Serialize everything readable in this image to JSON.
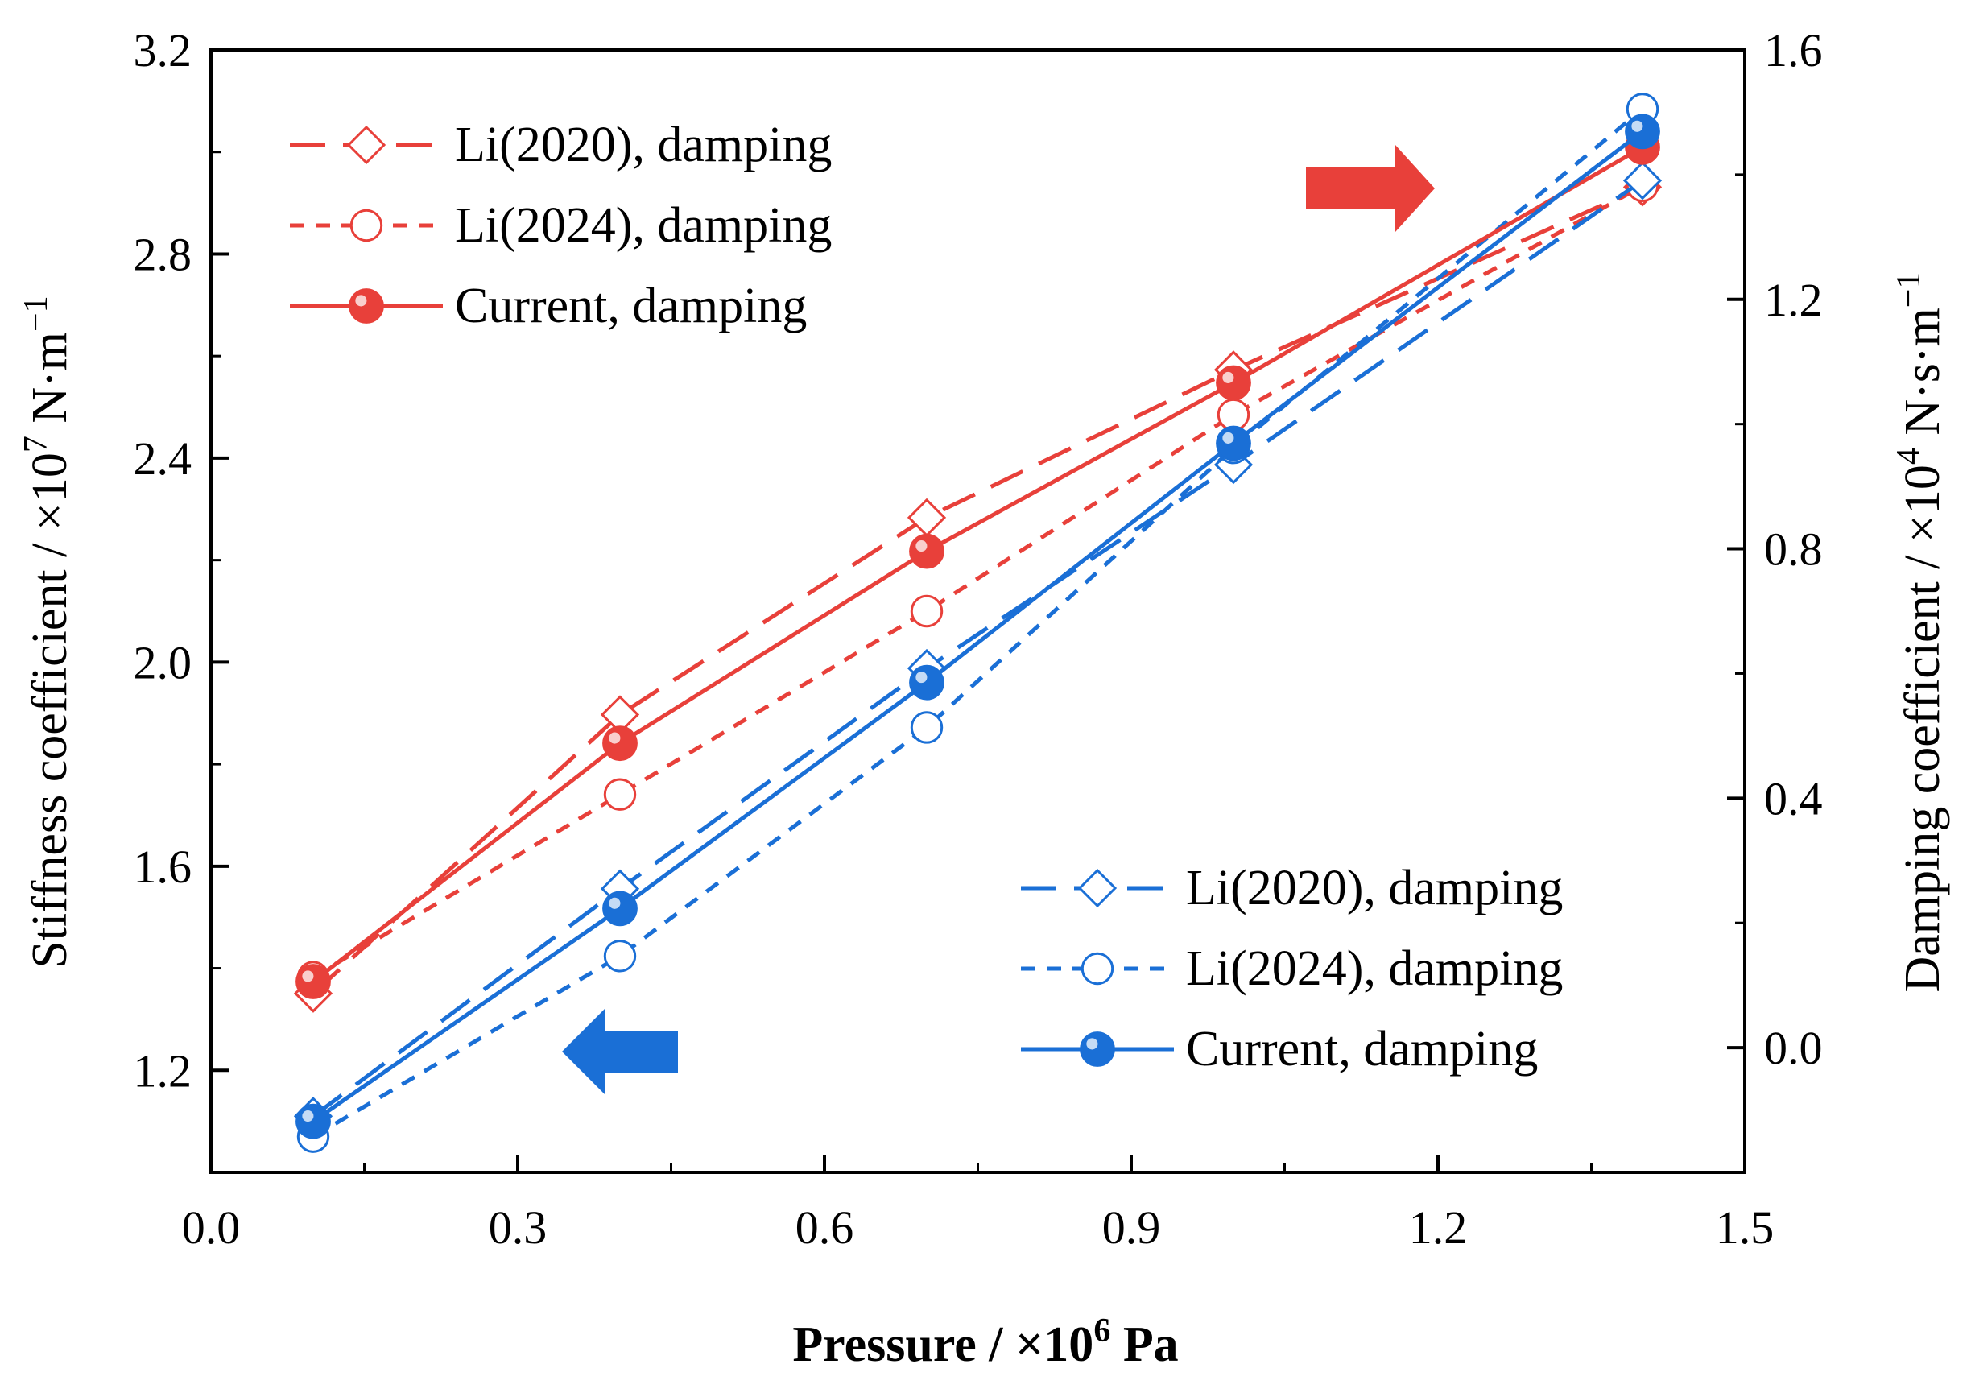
{
  "chart_data": {
    "type": "line",
    "x_axis": {
      "label": "Pressure / ×10",
      "label_exp": "6",
      "label_unit": " Pa",
      "lim": [
        0.0,
        1.5
      ],
      "ticks": [
        0.0,
        0.3,
        0.6,
        0.9,
        1.2,
        1.5
      ],
      "tick_labels": [
        "0.0",
        "0.3",
        "0.6",
        "0.9",
        "1.2",
        "1.5"
      ]
    },
    "y_left": {
      "label": "Stiffness coefficient / ×10",
      "label_exp": "7",
      "label_unit": " N·m",
      "label_unit_exp": "−1",
      "lim": [
        1.0,
        3.2
      ],
      "ticks": [
        1.2,
        1.6,
        2.0,
        2.4,
        2.8,
        3.2
      ],
      "tick_labels": [
        "1.2",
        "1.6",
        "2.0",
        "2.4",
        "2.8",
        "3.2"
      ]
    },
    "y_right": {
      "label": "Damping coefficient / ×10",
      "label_exp": "4",
      "label_unit": " N·s·m",
      "label_unit_exp": "−1",
      "lim": [
        -0.2,
        1.6
      ],
      "ticks": [
        0.0,
        0.4,
        0.8,
        1.2,
        1.6
      ],
      "tick_labels": [
        "0.0",
        "0.4",
        "0.8",
        "1.2",
        "1.6"
      ]
    },
    "x": [
      0.1,
      0.4,
      0.7,
      1.0,
      1.4
    ],
    "series": [
      {
        "name": "Li(2020), damping",
        "axis": "right",
        "color": "#e8403a",
        "dash": "dashed",
        "marker": "diamond",
        "values": [
          0.087,
          0.534,
          0.85,
          1.087,
          1.38
        ]
      },
      {
        "name": "Li(2024), damping",
        "axis": "right",
        "color": "#e8403a",
        "dash": "dotted",
        "marker": "circle",
        "values": [
          0.113,
          0.406,
          0.7,
          1.015,
          1.382
        ]
      },
      {
        "name": "Current,   damping",
        "axis": "right",
        "color": "#e8403a",
        "dash": "solid",
        "marker": "ball",
        "values": [
          0.106,
          0.488,
          0.796,
          1.066,
          1.444
        ]
      },
      {
        "name": "Li(2020), damping",
        "axis": "left",
        "color": "#1a6fd6",
        "dash": "dashed",
        "marker": "diamond",
        "values": [
          1.11,
          1.556,
          1.988,
          2.387,
          2.944
        ]
      },
      {
        "name": "Li(2024), damping",
        "axis": "left",
        "color": "#1a6fd6",
        "dash": "dotted",
        "marker": "circle",
        "values": [
          1.07,
          1.424,
          1.872,
          2.42,
          3.084
        ]
      },
      {
        "name": "Current,   damping",
        "axis": "left",
        "color": "#1a6fd6",
        "dash": "solid",
        "marker": "ball",
        "values": [
          1.1,
          1.517,
          1.96,
          2.429,
          3.04
        ]
      }
    ],
    "legends": [
      {
        "placement": "top-left",
        "series": [
          0,
          1,
          2
        ]
      },
      {
        "placement": "bottom-right",
        "series": [
          3,
          4,
          5
        ]
      }
    ],
    "annotations": [
      {
        "type": "arrow",
        "direction": "right",
        "color": "#e8403a",
        "meaning": "red series read on right axis"
      },
      {
        "type": "arrow",
        "direction": "left",
        "color": "#1a6fd6",
        "meaning": "blue series read on left axis"
      }
    ],
    "grid": false
  }
}
